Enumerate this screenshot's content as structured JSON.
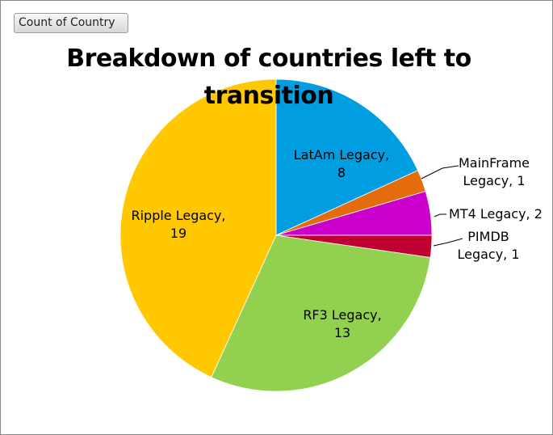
{
  "pivot_field_button": "Count of Country",
  "chart_data": {
    "type": "pie",
    "title": "Breakdown of countries left to transition",
    "slices": [
      {
        "name": "LatAm Legacy",
        "value": 8,
        "color": "#009ee0",
        "label_line1": "LatAm Legacy,",
        "label_line2": "8"
      },
      {
        "name": "MainFrame Legacy",
        "value": 1,
        "color": "#e46c0a",
        "label_line1": "MainFrame",
        "label_line2": "Legacy, 1"
      },
      {
        "name": "MT4 Legacy",
        "value": 2,
        "color": "#cc00cc",
        "label_line1": "MT4 Legacy, 2",
        "label_line2": ""
      },
      {
        "name": "PIMDB Legacy",
        "value": 1,
        "color": "#c00030",
        "label_line1": "PIMDB",
        "label_line2": "Legacy, 1"
      },
      {
        "name": "RF3 Legacy",
        "value": 13,
        "color": "#92d050",
        "label_line1": "RF3 Legacy,",
        "label_line2": "13"
      },
      {
        "name": "Ripple Legacy",
        "value": 19,
        "color": "#ffc800",
        "label_line1": "Ripple Legacy,",
        "label_line2": "19"
      }
    ]
  }
}
